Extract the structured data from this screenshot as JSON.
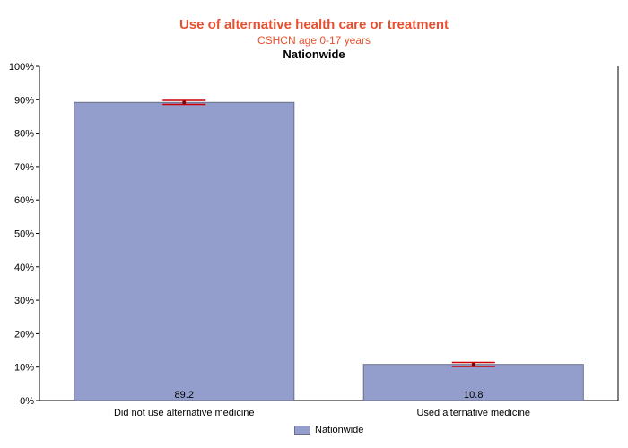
{
  "chart_data": {
    "type": "bar",
    "title": "Use of alternative health care or treatment",
    "subtitle": "CSHCN age 0-17 years",
    "subtitle2": "Nationwide",
    "categories": [
      "Did not use alternative medicine",
      "Used alternative medicine"
    ],
    "series": [
      {
        "name": "Nationwide",
        "values": [
          89.2,
          10.8
        ],
        "error_low": [
          88.6,
          10.2
        ],
        "error_high": [
          89.8,
          11.4
        ]
      }
    ],
    "value_labels": [
      "89.2",
      "10.8"
    ],
    "yticks": [
      "0%",
      "10%",
      "20%",
      "30%",
      "40%",
      "50%",
      "60%",
      "70%",
      "80%",
      "90%",
      "100%"
    ],
    "ylim": [
      0,
      100
    ],
    "xlabel": "",
    "ylabel": "",
    "grid": false,
    "legend": "bottom-center",
    "colors": {
      "bar": "#939ecd",
      "bar_border": "#6a6f87",
      "error": "#cc0000",
      "title": "#e8502f"
    }
  },
  "legend": {
    "label": "Nationwide"
  }
}
